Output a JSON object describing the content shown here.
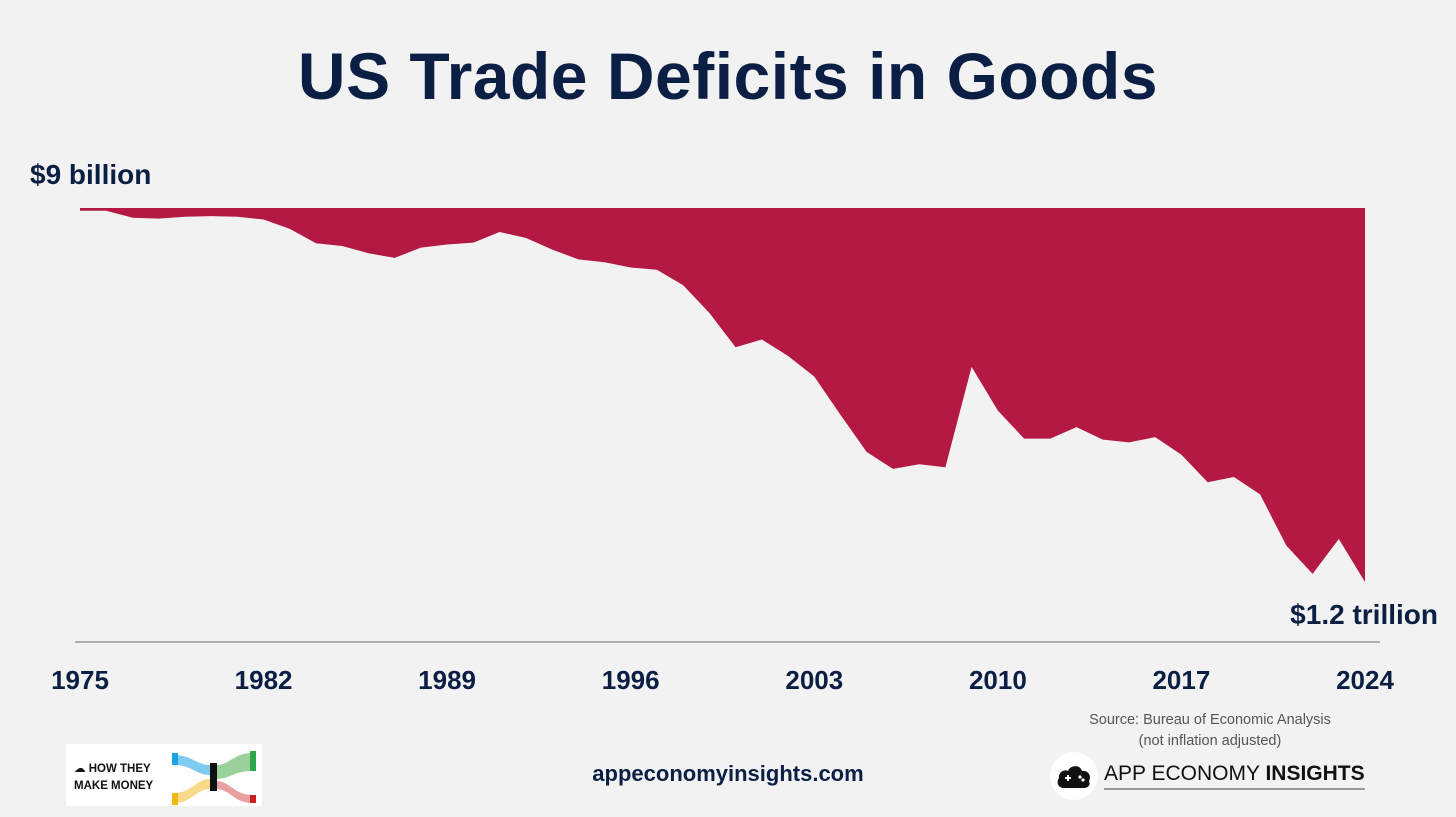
{
  "header": {
    "title": "US Trade Deficits in Goods"
  },
  "chart_data": {
    "type": "area",
    "title": "US Trade Deficits in Goods",
    "unit": "billion USD",
    "x": [
      1975,
      1976,
      1977,
      1978,
      1979,
      1980,
      1981,
      1982,
      1983,
      1984,
      1985,
      1986,
      1987,
      1988,
      1989,
      1990,
      1991,
      1992,
      1993,
      1994,
      1995,
      1996,
      1997,
      1998,
      1999,
      2000,
      2001,
      2002,
      2003,
      2004,
      2005,
      2006,
      2007,
      2008,
      2009,
      2010,
      2011,
      2012,
      2013,
      2014,
      2015,
      2016,
      2017,
      2018,
      2019,
      2020,
      2021,
      2022,
      2023,
      2024
    ],
    "series": [
      {
        "values": [
          -9,
          -9,
          -31,
          -34,
          -28,
          -26,
          -28,
          -37,
          -67,
          -113,
          -122,
          -145,
          -160,
          -127,
          -117,
          -111,
          -77,
          -96,
          -133,
          -165,
          -174,
          -191,
          -198,
          -248,
          -337,
          -447,
          -422,
          -475,
          -541,
          -664,
          -783,
          -837,
          -822,
          -832,
          -510,
          -650,
          -740,
          -740,
          -703,
          -743,
          -752,
          -735,
          -792,
          -880,
          -863,
          -919,
          -1083,
          -1174,
          -1062,
          -1200
        ]
      }
    ],
    "xticks": [
      "1975",
      "1982",
      "1989",
      "1996",
      "2003",
      "2010",
      "2017",
      "2024"
    ],
    "xlim": [
      1975,
      2024
    ],
    "ylim": [
      -1200,
      0
    ],
    "grid": false,
    "annotations": {
      "start_label": "$9 billion",
      "end_label": "$1.2 trillion"
    },
    "colors": {
      "area": "#b31942",
      "axis": "#9a9a9a",
      "text": "#0b1f45"
    }
  },
  "footer": {
    "source_line1": "Source: Bureau of Economic Analysis",
    "source_line2": "(not inflation adjusted)",
    "website": "appeconomyinsights.com",
    "left_logo": {
      "line1": "HOW THEY",
      "line2": "MAKE MONEY",
      "icon": "cloud-icon"
    },
    "right_logo": {
      "name_regular": "APP ECONOMY ",
      "name_bold": "INSIGHTS",
      "icon": "cloud-gamepad-icon"
    }
  }
}
